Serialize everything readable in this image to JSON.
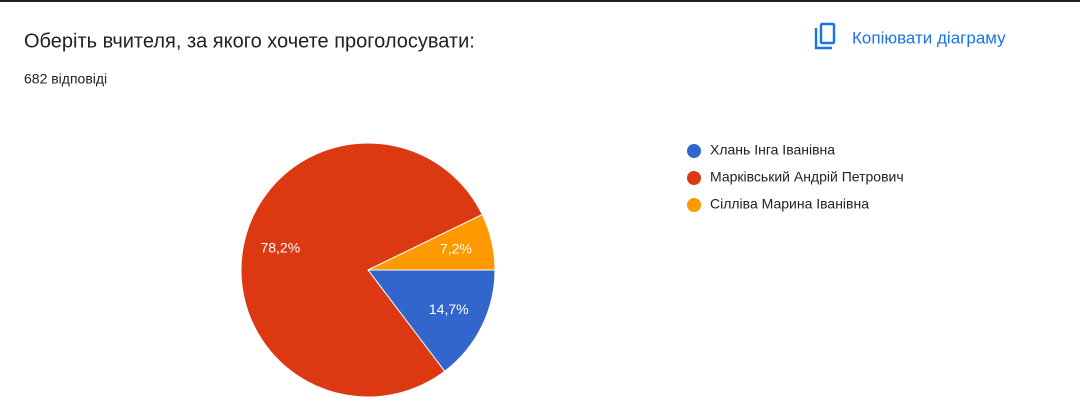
{
  "copy_button": "Копіювати діаграму",
  "chart_data": {
    "type": "pie",
    "title": "Оберіть вчителя, за якого хочете проголосувати:",
    "subtitle": "682 відповіді",
    "categories": [
      "Хлань Інга Іванівна",
      "Марківський Андрій Петрович",
      "Сілліва Марина Іванівна"
    ],
    "values": [
      14.7,
      78.2,
      7.2
    ],
    "value_labels": [
      "14,7%",
      "78,2%",
      "7,2%"
    ],
    "colors": [
      "#3366cc",
      "#dc3912",
      "#ff9900"
    ],
    "legend": "right"
  }
}
